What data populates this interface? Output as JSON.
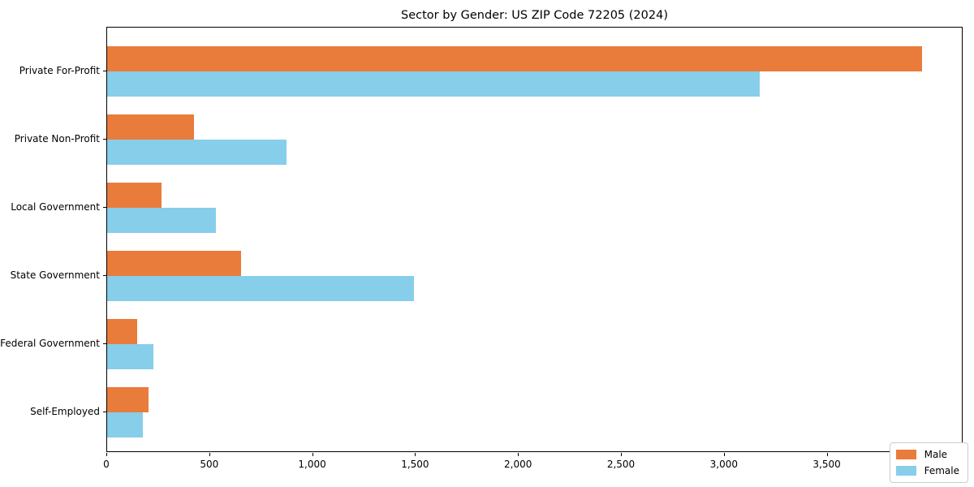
{
  "chart_data": {
    "type": "bar",
    "orientation": "horizontal",
    "title": "Sector by Gender: US ZIP Code 72205 (2024)",
    "categories": [
      "Private For-Profit",
      "Private Non-Profit",
      "Local Government",
      "State Government",
      "Federal Government",
      "Self-Employed"
    ],
    "series": [
      {
        "name": "Male",
        "color": "#e97c3a",
        "values": [
          3960,
          420,
          265,
          650,
          145,
          200
        ]
      },
      {
        "name": "Female",
        "color": "#87ceeb",
        "values": [
          3170,
          870,
          530,
          1490,
          225,
          175
        ]
      }
    ],
    "xlabel": "",
    "ylabel": "",
    "xlim": [
      0,
      4160
    ],
    "x_ticks": {
      "values": [
        0,
        500,
        1000,
        1500,
        2000,
        2500,
        3000,
        3500,
        4000
      ],
      "labels": [
        "0",
        "500",
        "1,000",
        "1,500",
        "2,000",
        "2,500",
        "3,000",
        "3,500",
        "4,000"
      ]
    },
    "grid": false,
    "legend_position": "lower right"
  }
}
